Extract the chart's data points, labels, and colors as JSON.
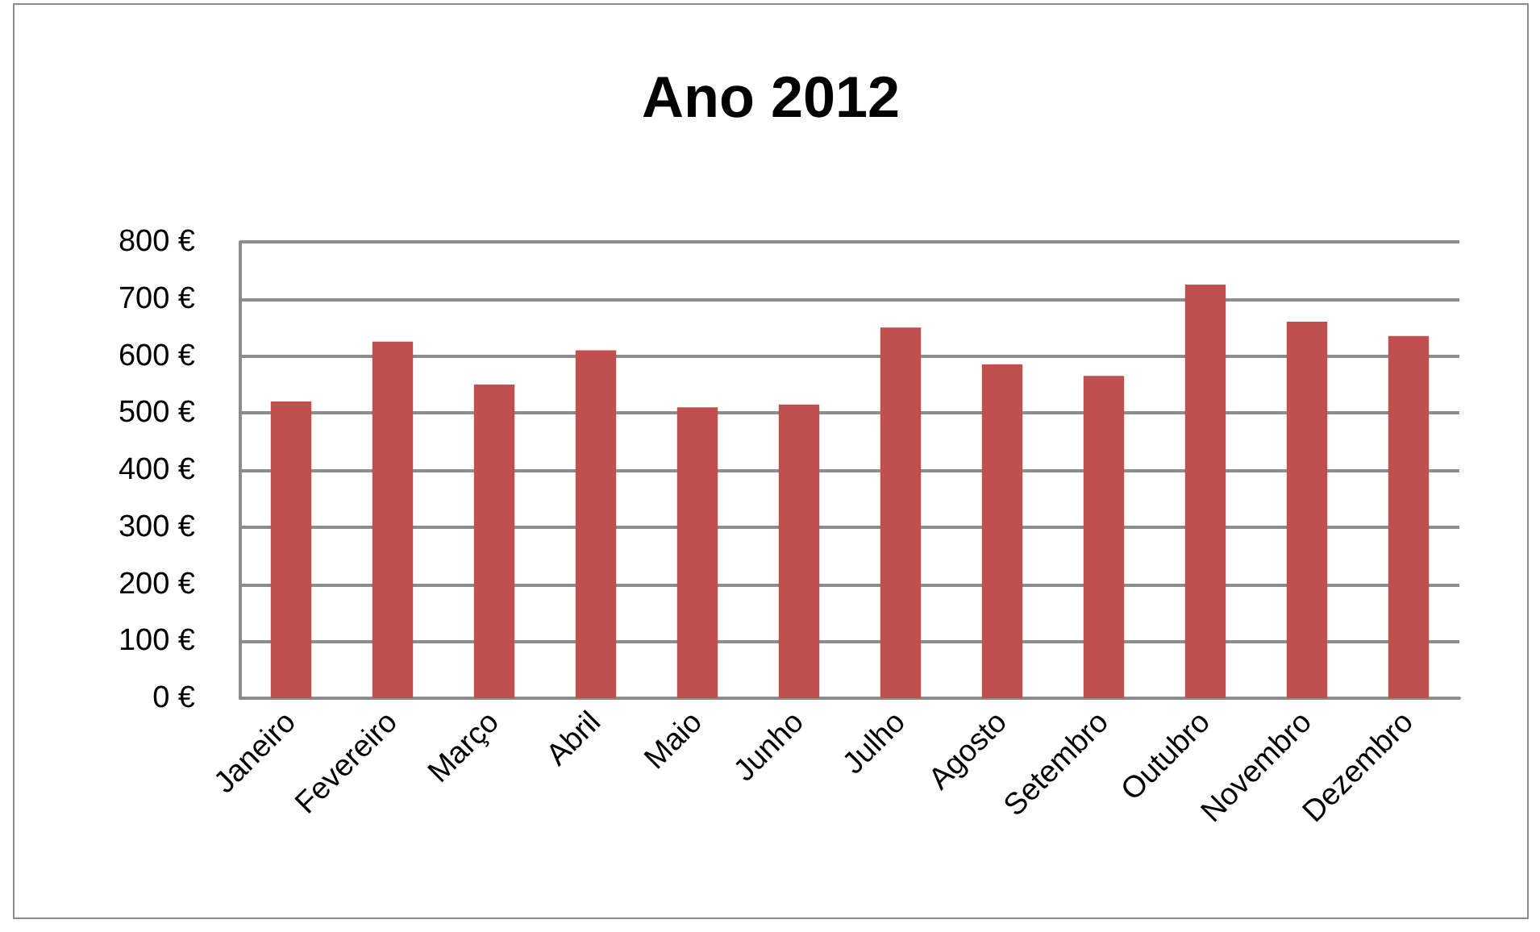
{
  "chart_data": {
    "type": "bar",
    "title": "Ano 2012",
    "categories": [
      "Janeiro",
      "Fevereiro",
      "Março",
      "Abril",
      "Maio",
      "Junho",
      "Julho",
      "Agosto",
      "Setembro",
      "Outubro",
      "Novembro",
      "Dezembro"
    ],
    "values": [
      520,
      625,
      550,
      610,
      510,
      515,
      650,
      585,
      565,
      725,
      660,
      635
    ],
    "color": "#c0504d",
    "ylim": [
      0,
      800
    ],
    "yticks": [
      {
        "value": 0,
        "label": "0 €"
      },
      {
        "value": 100,
        "label": "100 €"
      },
      {
        "value": 200,
        "label": "200 €"
      },
      {
        "value": 300,
        "label": "300 €"
      },
      {
        "value": 400,
        "label": "400 €"
      },
      {
        "value": 500,
        "label": "500 €"
      },
      {
        "value": 600,
        "label": "600 €"
      },
      {
        "value": 700,
        "label": "700 €"
      },
      {
        "value": 800,
        "label": "800 €"
      }
    ],
    "grid": "y"
  }
}
